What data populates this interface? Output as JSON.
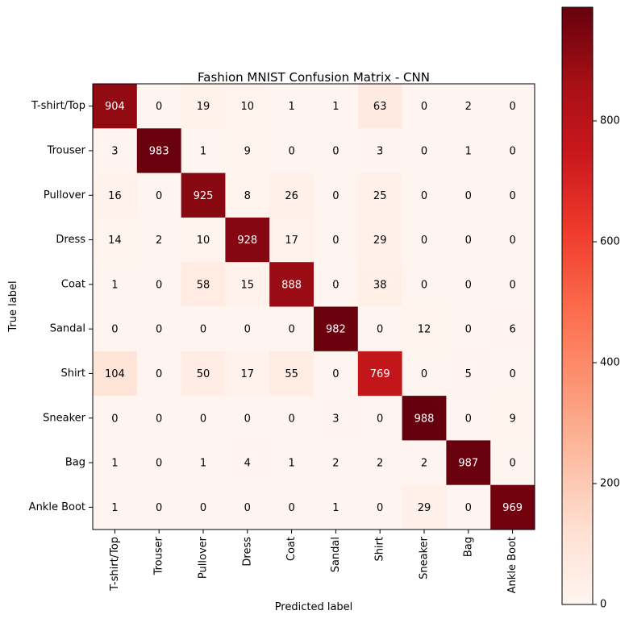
{
  "chart_data": {
    "type": "heatmap",
    "title": "Fashion MNIST Confusion Matrix - CNN",
    "xlabel": "Predicted label",
    "ylabel": "True label",
    "categories": [
      "T-shirt/Top",
      "Trouser",
      "Pullover",
      "Dress",
      "Coat",
      "Sandal",
      "Shirt",
      "Sneaker",
      "Bag",
      "Ankle Boot"
    ],
    "matrix": [
      [
        904,
        0,
        19,
        10,
        1,
        1,
        63,
        0,
        2,
        0
      ],
      [
        3,
        983,
        1,
        9,
        0,
        0,
        3,
        0,
        1,
        0
      ],
      [
        16,
        0,
        925,
        8,
        26,
        0,
        25,
        0,
        0,
        0
      ],
      [
        14,
        2,
        10,
        928,
        17,
        0,
        29,
        0,
        0,
        0
      ],
      [
        1,
        0,
        58,
        15,
        888,
        0,
        38,
        0,
        0,
        0
      ],
      [
        0,
        0,
        0,
        0,
        0,
        982,
        0,
        12,
        0,
        6
      ],
      [
        104,
        0,
        50,
        17,
        55,
        0,
        769,
        0,
        5,
        0
      ],
      [
        0,
        0,
        0,
        0,
        0,
        3,
        0,
        988,
        0,
        9
      ],
      [
        1,
        0,
        1,
        4,
        1,
        2,
        2,
        2,
        987,
        0
      ],
      [
        1,
        0,
        0,
        0,
        0,
        1,
        0,
        29,
        0,
        969
      ]
    ],
    "colormap": "Reds",
    "color_range": [
      0,
      988
    ],
    "colorbar_ticks": [
      0,
      200,
      400,
      600,
      800
    ],
    "grid": false
  }
}
